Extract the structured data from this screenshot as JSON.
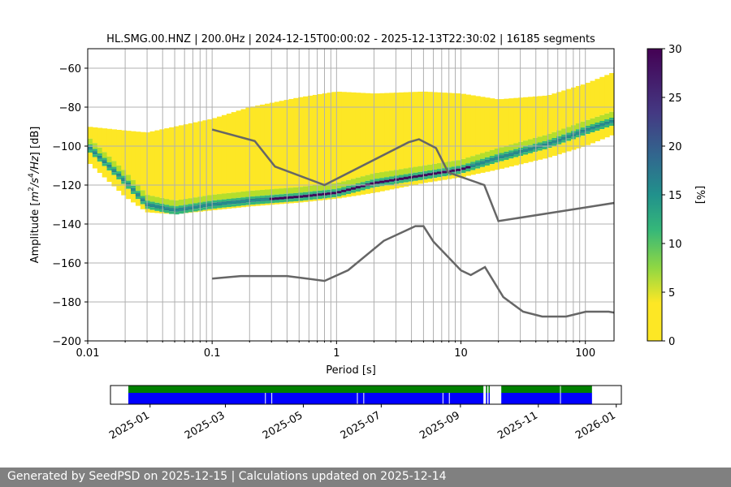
{
  "chart_data": {
    "type": "heatmap",
    "title": "HL.SMG.00.HNZ | 200.0Hz | 2024-12-15T00:00:02 - 2025-12-13T22:30:02 | 16185 segments",
    "xlabel": "Period [s]",
    "ylabel_parts": [
      "Amplitude [",
      "m",
      "2",
      "/",
      "s",
      "4",
      "/Hz",
      "] [dB]"
    ],
    "x_scale": "log",
    "xlim": [
      0.01,
      170
    ],
    "ylim": [
      -200,
      -50
    ],
    "x_ticks": [
      0.01,
      0.1,
      1,
      10,
      100
    ],
    "x_tick_labels": [
      "0.01",
      "0.1",
      "1",
      "10",
      "100"
    ],
    "y_ticks": [
      -200,
      -180,
      -160,
      -140,
      -120,
      -100,
      -80,
      -60
    ],
    "y_tick_labels": [
      "−200",
      "−180",
      "−160",
      "−140",
      "−120",
      "−100",
      "−80",
      "−60"
    ],
    "grid": true,
    "colorbar": {
      "label": "[%]",
      "min": 0,
      "max": 30,
      "ticks": [
        0,
        5,
        10,
        15,
        20,
        25,
        30
      ],
      "tick_labels": [
        "0",
        "5",
        "10",
        "15",
        "20",
        "25",
        "30"
      ],
      "colormap": "viridis"
    },
    "psd_mode": {
      "period": [
        0.01,
        0.02,
        0.03,
        0.05,
        0.1,
        0.2,
        0.5,
        1,
        2,
        5,
        10,
        20,
        50,
        100,
        170
      ],
      "amplitude": [
        -100,
        -118,
        -130,
        -133,
        -130,
        -128,
        -126,
        -124,
        -119,
        -115,
        -112,
        -106,
        -99,
        -92,
        -87
      ]
    },
    "psd_upper_envelope": {
      "period": [
        0.01,
        0.02,
        0.03,
        0.05,
        0.1,
        0.2,
        0.5,
        1,
        2,
        5,
        10,
        20,
        50,
        100,
        170
      ],
      "amplitude": [
        -90,
        -92,
        -93,
        -90,
        -86,
        -80,
        -75,
        -72,
        -73,
        -72,
        -73,
        -76,
        -74,
        -68,
        -62
      ]
    },
    "psd_lower_envelope": {
      "period": [
        0.01,
        0.02,
        0.03,
        0.05,
        0.1,
        0.2,
        0.5,
        1,
        2,
        5,
        10,
        20,
        50,
        100,
        170
      ],
      "amplitude": [
        -108,
        -126,
        -134,
        -135,
        -133,
        -131,
        -129,
        -127,
        -124,
        -119,
        -116,
        -112,
        -106,
        -100,
        -94
      ]
    },
    "nhnm": {
      "period": [
        0.1,
        0.22,
        0.32,
        0.8,
        3.8,
        4.6,
        6.3,
        7.9,
        15.4,
        20,
        354.8
      ],
      "amplitude": [
        -91.5,
        -97.4,
        -110.5,
        -120,
        -98,
        -96.5,
        -101,
        -113.5,
        -120,
        -138.5,
        -126
      ]
    },
    "nlnm": {
      "period": [
        0.1,
        0.17,
        0.4,
        0.8,
        1.24,
        2.4,
        4.3,
        5,
        6,
        10,
        12,
        15.6,
        21.9,
        31.6,
        45,
        70,
        101,
        154,
        170
      ],
      "amplitude": [
        -168,
        -166.7,
        -166.7,
        -169.2,
        -163.7,
        -148.6,
        -141.1,
        -141.1,
        -149,
        -163.8,
        -166.2,
        -162.1,
        -177.5,
        -185,
        -187.5,
        -187.5,
        -185,
        -185,
        -185.5
      ]
    },
    "timeline": {
      "date_ticks": [
        "2025-01",
        "2025-03",
        "2025-05",
        "2025-07",
        "2025-09",
        "2025-11",
        "2026-01"
      ],
      "date_range": [
        "2024-12-15",
        "2025-12-13"
      ],
      "coverage_green": [
        [
          "2024-12-15",
          "2025-09-19"
        ],
        [
          "2025-09-21",
          "2025-09-22"
        ],
        [
          "2025-09-23",
          "2025-09-24"
        ],
        [
          "2025-10-03",
          "2025-12-13"
        ]
      ],
      "coverage_blue": [
        [
          "2024-12-15",
          "2025-09-19"
        ],
        [
          "2025-09-21",
          "2025-09-22"
        ],
        [
          "2025-09-23",
          "2025-09-24"
        ],
        [
          "2025-10-03",
          "2025-12-13"
        ]
      ],
      "blue_gaps": [
        "2025-04-01",
        "2025-04-06",
        "2025-06-12",
        "2025-06-17",
        "2025-08-18",
        "2025-08-23",
        "2025-11-18"
      ],
      "green_gaps": [
        "2025-11-18"
      ],
      "green_color": "#008000",
      "blue_color": "#0000ff"
    }
  },
  "colors": {
    "noise_model": "#666666",
    "grid": "#b0b0b0",
    "footer_bg": "#808080",
    "footer_text": "#ffffff"
  },
  "footer": {
    "text": "Generated by SeedPSD on 2025-12-15 | Calculations updated on 2025-12-14"
  }
}
